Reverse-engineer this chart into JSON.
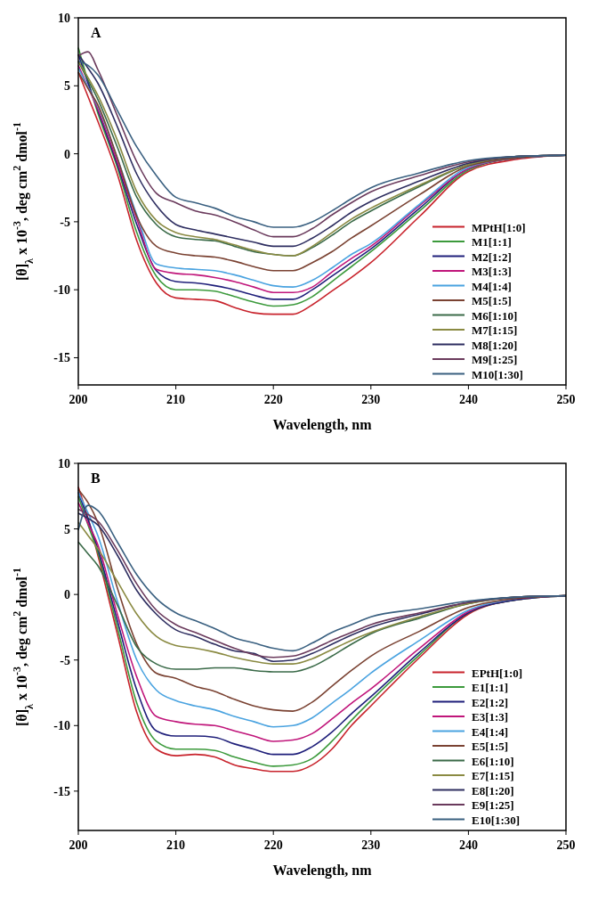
{
  "chart_data": [
    {
      "type": "line",
      "title": "A",
      "xlabel": "Wavelength, nm",
      "ylabel": "[θ]$_{λ}$ x 10$^{-3}$, deg cm$^{2}$ dmol$^{-1}$",
      "x": [
        200,
        201,
        202,
        204,
        206,
        208,
        210,
        212,
        214,
        216,
        218,
        220,
        222,
        224,
        226,
        228,
        230,
        235,
        240,
        245,
        250
      ],
      "xlim": [
        200,
        250
      ],
      "xticks": [
        200,
        210,
        220,
        230,
        240,
        250
      ],
      "ylim": [
        -17,
        10
      ],
      "yticks": [
        -15,
        -10,
        -5,
        0,
        5,
        10
      ],
      "grid": false,
      "legend": "bottom right",
      "marker": "none",
      "line_style": "solid",
      "series": [
        {
          "name": "MPtH[1:0]",
          "color": "#c8232c",
          "values": [
            6.0,
            4.2,
            2.4,
            -1.5,
            -6.4,
            -9.5,
            -10.6,
            -10.7,
            -10.8,
            -11.3,
            -11.7,
            -11.8,
            -11.8,
            -11.1,
            -10.1,
            -9.1,
            -8.0,
            -4.6,
            -1.3,
            -0.4,
            -0.1
          ]
        },
        {
          "name": "M1[1:1]",
          "color": "#3c9a3c",
          "values": [
            7.8,
            5.3,
            3.0,
            -1.0,
            -5.8,
            -9.0,
            -10.0,
            -10.0,
            -10.1,
            -10.5,
            -10.9,
            -11.2,
            -11.1,
            -10.5,
            -9.4,
            -8.3,
            -7.2,
            -4.2,
            -1.2,
            -0.3,
            -0.1
          ]
        },
        {
          "name": "M2[1:2]",
          "color": "#1f1f7a",
          "values": [
            7.3,
            5.2,
            3.2,
            -0.8,
            -5.2,
            -8.6,
            -9.4,
            -9.5,
            -9.7,
            -10.0,
            -10.4,
            -10.7,
            -10.7,
            -10.0,
            -9.0,
            -8.0,
            -7.0,
            -4.0,
            -1.1,
            -0.3,
            -0.1
          ]
        },
        {
          "name": "M3[1:3]",
          "color": "#c0157a",
          "values": [
            6.5,
            4.9,
            3.3,
            -0.6,
            -4.8,
            -8.5,
            -8.8,
            -8.9,
            -9.1,
            -9.4,
            -9.8,
            -10.2,
            -10.2,
            -9.8,
            -8.7,
            -7.7,
            -6.8,
            -3.8,
            -1.1,
            -0.3,
            -0.1
          ]
        },
        {
          "name": "M4[1:4]",
          "color": "#4aa3e0",
          "values": [
            6.3,
            4.9,
            3.5,
            -0.3,
            -4.5,
            -8.1,
            -8.4,
            -8.5,
            -8.6,
            -8.9,
            -9.3,
            -9.7,
            -9.8,
            -9.3,
            -8.4,
            -7.4,
            -6.6,
            -3.7,
            -1.0,
            -0.3,
            -0.1
          ]
        },
        {
          "name": "M5[1:5]",
          "color": "#7a4232",
          "values": [
            6.0,
            4.8,
            3.6,
            -0.3,
            -4.6,
            -6.8,
            -7.3,
            -7.5,
            -7.6,
            -7.9,
            -8.3,
            -8.6,
            -8.6,
            -8.0,
            -7.2,
            -6.2,
            -5.3,
            -3.0,
            -0.9,
            -0.3,
            -0.1
          ]
        },
        {
          "name": "M6[1:10]",
          "color": "#3a6a48",
          "values": [
            6.8,
            5.4,
            4.0,
            0.5,
            -3.2,
            -5.2,
            -6.1,
            -6.3,
            -6.4,
            -6.8,
            -7.2,
            -7.4,
            -7.5,
            -6.9,
            -6.0,
            -5.0,
            -4.2,
            -2.4,
            -0.8,
            -0.2,
            -0.1
          ]
        },
        {
          "name": "M7[1:15]",
          "color": "#8a8a42",
          "values": [
            6.8,
            5.6,
            4.3,
            1.0,
            -2.8,
            -4.9,
            -5.8,
            -6.1,
            -6.3,
            -6.7,
            -7.1,
            -7.4,
            -7.5,
            -6.8,
            -5.8,
            -4.8,
            -4.0,
            -2.3,
            -0.8,
            -0.2,
            -0.1
          ]
        },
        {
          "name": "M8[1:20]",
          "color": "#2e2e60",
          "values": [
            7.3,
            6.3,
            5.2,
            2.0,
            -1.5,
            -3.8,
            -5.2,
            -5.6,
            -5.9,
            -6.2,
            -6.5,
            -6.8,
            -6.8,
            -6.2,
            -5.3,
            -4.3,
            -3.5,
            -2.0,
            -0.7,
            -0.2,
            -0.1
          ]
        },
        {
          "name": "M9[1:25]",
          "color": "#6a3a5c",
          "values": [
            7.2,
            7.5,
            6.2,
            2.8,
            -0.6,
            -2.9,
            -3.6,
            -4.2,
            -4.5,
            -5.0,
            -5.6,
            -6.1,
            -6.1,
            -5.5,
            -4.5,
            -3.6,
            -2.8,
            -1.6,
            -0.6,
            -0.2,
            -0.1
          ]
        },
        {
          "name": "M10[1:30]",
          "color": "#3a6080",
          "values": [
            6.8,
            6.5,
            5.8,
            3.2,
            0.5,
            -1.6,
            -3.2,
            -3.6,
            -4.0,
            -4.6,
            -5.0,
            -5.4,
            -5.4,
            -5.0,
            -4.2,
            -3.3,
            -2.5,
            -1.4,
            -0.5,
            -0.2,
            -0.1
          ]
        }
      ]
    },
    {
      "type": "line",
      "title": "B",
      "xlabel": "Wavelength, nm",
      "ylabel": "[θ]$_{λ}$ x 10$^{-3}$, deg cm$^{2}$ dmol$^{-1}$",
      "x": [
        200,
        201,
        202,
        204,
        206,
        208,
        210,
        212,
        214,
        216,
        218,
        220,
        222,
        224,
        226,
        228,
        230,
        235,
        240,
        245,
        250
      ],
      "xlim": [
        200,
        250
      ],
      "xticks": [
        200,
        210,
        220,
        230,
        240,
        250
      ],
      "ylim": [
        -18,
        10
      ],
      "yticks": [
        -15,
        -10,
        -5,
        0,
        5,
        10
      ],
      "grid": false,
      "legend": "bottom right",
      "marker": "none",
      "line_style": "solid",
      "series": [
        {
          "name": "EPtH[1:0]",
          "color": "#c8232c",
          "values": [
            8.2,
            5.8,
            3.0,
            -3.0,
            -9.0,
            -11.8,
            -12.3,
            -12.2,
            -12.4,
            -13.0,
            -13.3,
            -13.5,
            -13.5,
            -13.0,
            -11.8,
            -10.0,
            -8.5,
            -4.8,
            -1.5,
            -0.4,
            -0.1
          ]
        },
        {
          "name": "E1[1:1]",
          "color": "#3c9a3c",
          "values": [
            7.5,
            5.3,
            3.2,
            -2.5,
            -8.3,
            -11.2,
            -11.8,
            -11.8,
            -11.9,
            -12.4,
            -12.8,
            -13.1,
            -13.0,
            -12.5,
            -11.2,
            -9.6,
            -8.1,
            -4.6,
            -1.4,
            -0.4,
            -0.1
          ]
        },
        {
          "name": "E2[1:2]",
          "color": "#1f1f7a",
          "values": [
            7.8,
            5.7,
            3.5,
            -2.0,
            -7.3,
            -10.4,
            -10.8,
            -10.8,
            -10.9,
            -11.4,
            -11.8,
            -12.2,
            -12.2,
            -11.6,
            -10.5,
            -9.1,
            -7.8,
            -4.4,
            -1.4,
            -0.4,
            -0.1
          ]
        },
        {
          "name": "E3[1:3]",
          "color": "#c0157a",
          "values": [
            7.0,
            5.4,
            3.8,
            -1.5,
            -6.3,
            -9.3,
            -9.7,
            -9.9,
            -10.0,
            -10.4,
            -10.8,
            -11.2,
            -11.1,
            -10.6,
            -9.5,
            -8.3,
            -7.2,
            -4.1,
            -1.3,
            -0.3,
            -0.1
          ]
        },
        {
          "name": "E4[1:4]",
          "color": "#4aa3e0",
          "values": [
            7.8,
            6.2,
            4.5,
            -0.5,
            -5.0,
            -7.3,
            -8.1,
            -8.5,
            -8.8,
            -9.3,
            -9.7,
            -10.1,
            -10.0,
            -9.4,
            -8.3,
            -7.2,
            -6.0,
            -3.5,
            -1.2,
            -0.3,
            null
          ]
        },
        {
          "name": "E5[1:5]",
          "color": "#7a4232",
          "values": [
            8.0,
            7.0,
            5.5,
            0.5,
            -3.8,
            -6.0,
            -6.4,
            -7.0,
            -7.4,
            -8.0,
            -8.5,
            -8.8,
            -8.9,
            -8.2,
            -7.0,
            -5.8,
            -4.7,
            -2.8,
            -1.0,
            -0.3,
            -0.1
          ]
        },
        {
          "name": "E6[1:10]",
          "color": "#3a6a48",
          "values": [
            4.0,
            3.1,
            2.2,
            -0.8,
            -4.0,
            -5.3,
            -5.7,
            -5.7,
            -5.6,
            -5.6,
            -5.8,
            -5.9,
            -5.9,
            -5.5,
            -4.7,
            -3.8,
            -3.0,
            -1.8,
            -0.7,
            -0.2,
            -0.1
          ]
        },
        {
          "name": "E7[1:15]",
          "color": "#8a8a42",
          "values": [
            5.5,
            4.5,
            3.5,
            1.0,
            -1.5,
            -3.2,
            -3.9,
            -4.1,
            -4.4,
            -4.8,
            -5.1,
            -5.3,
            -5.3,
            -4.9,
            -4.2,
            -3.5,
            -2.9,
            -1.7,
            -0.7,
            -0.2,
            -0.1
          ]
        },
        {
          "name": "E8[1:20]",
          "color": "#2e2e60",
          "values": [
            6.2,
            5.8,
            5.3,
            3.0,
            0.3,
            -1.5,
            -2.7,
            -3.2,
            -3.8,
            -4.3,
            -4.5,
            -5.1,
            -5.0,
            -4.5,
            -3.8,
            -3.1,
            -2.5,
            -1.5,
            -0.6,
            -0.2,
            -0.1
          ]
        },
        {
          "name": "E9[1:25]",
          "color": "#6a3a5c",
          "values": [
            6.5,
            6.1,
            5.6,
            3.4,
            0.8,
            -1.2,
            -2.3,
            -2.9,
            -3.5,
            -4.1,
            -4.6,
            -4.8,
            -4.7,
            -4.2,
            -3.5,
            -2.9,
            -2.3,
            -1.4,
            -0.6,
            -0.2,
            -0.1
          ]
        },
        {
          "name": "E10[1:30]",
          "color": "#3a6080",
          "values": [
            4.9,
            6.8,
            6.4,
            4.0,
            1.5,
            -0.3,
            -1.4,
            -2.0,
            -2.6,
            -3.3,
            -3.7,
            -4.1,
            -4.3,
            -3.7,
            -2.9,
            -2.3,
            -1.7,
            -1.1,
            -0.5,
            -0.2,
            -0.1
          ]
        }
      ]
    }
  ]
}
